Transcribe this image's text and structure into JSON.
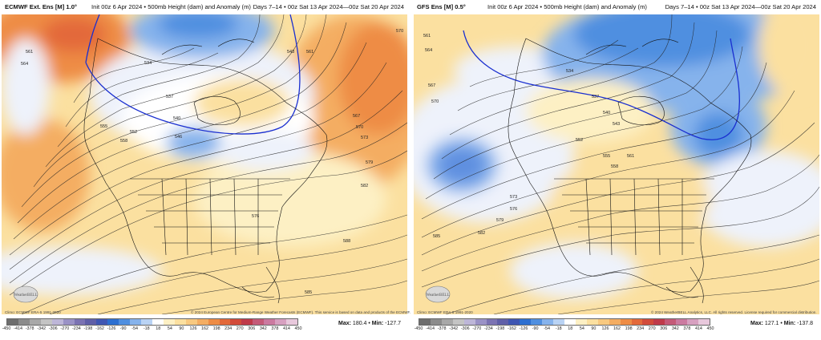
{
  "panels": [
    {
      "title": "ECMWF Ext. Ens [M] 1.0°",
      "init": "Init 00z 6 Apr 2024 • 500mb Height (dam) and Anomaly (m)",
      "days": "Days 7–14 • 00z Sat 13 Apr 2024—00z Sat 20 Apr 2024",
      "climo": "Climo: ECMWF ERA-5 1991-2020",
      "copyright": "© 2024 European Centre for Medium-Range Weather Forecasts (ECMWF). This service is based on data and products of the ECMWF.",
      "max_label": "Max:",
      "max_value": "180.4",
      "min_label": "Min:",
      "min_value": "-127.7",
      "contour_labels": [
        "561",
        "564",
        "534",
        "537",
        "543",
        "540",
        "552",
        "555",
        "558",
        "546",
        "561",
        "567",
        "570",
        "573",
        "579",
        "576",
        "582",
        "588",
        "585",
        "570"
      ]
    },
    {
      "title": "GFS Ens [M] 0.5°",
      "init": "Init 00z 6 Apr 2024 • 500mb Height (dam) and Anomaly (m)",
      "days": "Days 7–14 • 00z Sat 13 Apr 2024—00z Sat 20 Apr 2024",
      "climo": "Climo: ECMWF ERA-5 1991-2020",
      "copyright": "© 2024 WeatherBELL Analytics, LLC. All rights reserved. License required for commercial distribution.",
      "max_label": "Max:",
      "max_value": "127.1",
      "min_label": "Min:",
      "min_value": "-137.8",
      "contour_labels": [
        "561",
        "564",
        "567",
        "570",
        "537",
        "534",
        "540",
        "543",
        "552",
        "555",
        "558",
        "561",
        "573",
        "576",
        "579",
        "582",
        "585"
      ]
    }
  ],
  "colorbar": {
    "ticks": [
      "-450",
      "-414",
      "-378",
      "-342",
      "-306",
      "-270",
      "-234",
      "-198",
      "-162",
      "-126",
      "-90",
      "-54",
      "-18",
      "18",
      "54",
      "90",
      "126",
      "162",
      "198",
      "234",
      "270",
      "306",
      "342",
      "378",
      "414",
      "450"
    ],
    "colors": [
      "#6e6e6e",
      "#8c8c8c",
      "#a8a8a8",
      "#c4c4c4",
      "#bdb6d8",
      "#9a92c6",
      "#7b73b3",
      "#5f5fa8",
      "#3f56b3",
      "#2c6fd1",
      "#4f8fe0",
      "#86b3ec",
      "#b9d3f4",
      "#ffffff",
      "#fdf0c4",
      "#fbe0a0",
      "#f8c980",
      "#f4ad62",
      "#ee8c45",
      "#e3693a",
      "#d24b3a",
      "#bf3a4a",
      "#c45a78",
      "#cb7aa0",
      "#d7a0c0",
      "#e8c8dc"
    ]
  },
  "logo_text": "WeatherBELL"
}
